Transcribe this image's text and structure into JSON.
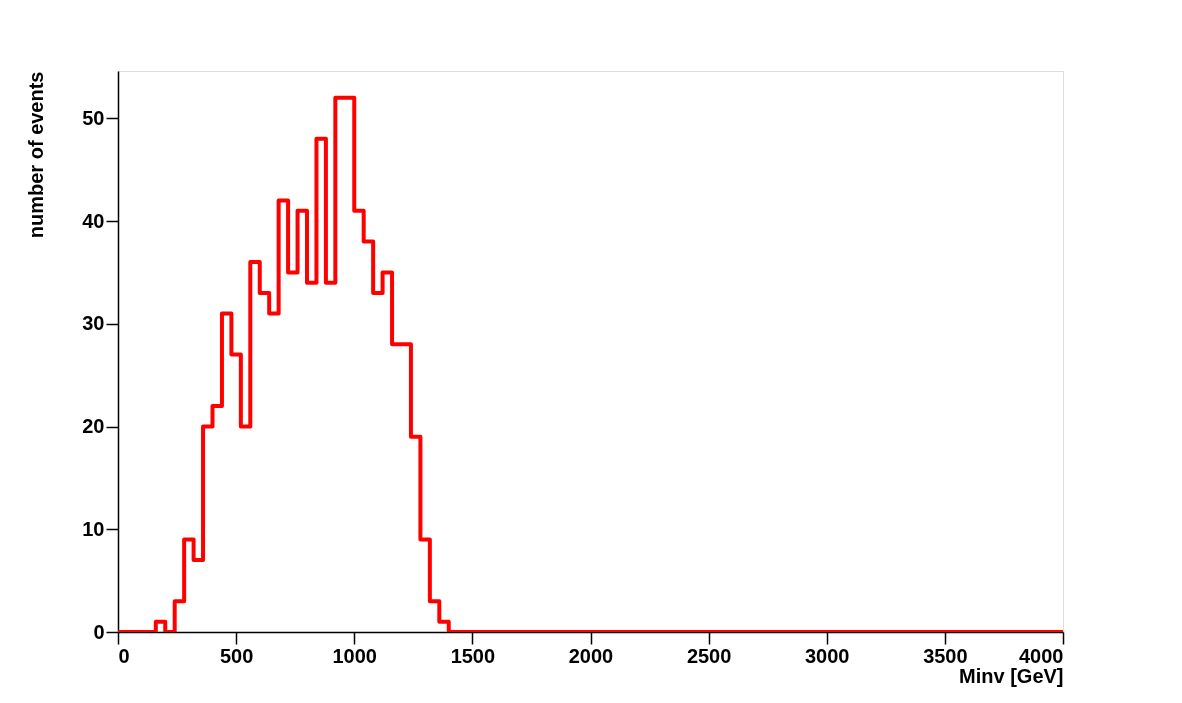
{
  "chart_data": {
    "type": "histogram",
    "xlabel": "Minv [GeV]",
    "ylabel": "number of events",
    "bins": [
      0,
      40,
      80,
      120,
      160,
      200,
      240,
      280,
      320,
      360,
      400,
      440,
      480,
      520,
      560,
      600,
      640,
      680,
      720,
      760,
      800,
      840,
      880,
      920,
      960,
      1000,
      1040,
      1080,
      1120,
      1160,
      1200,
      1240,
      1280,
      1320,
      1360,
      1400,
      1440,
      1480,
      1520,
      1560,
      1600,
      1640,
      1680,
      1720,
      1760,
      1800,
      1840,
      1880,
      1920,
      1960,
      2000,
      2040,
      2080,
      2120,
      2160,
      2200,
      2240,
      2280,
      2320,
      2360,
      2400,
      2440,
      2480,
      2520,
      2560,
      2600,
      2640,
      2680,
      2720,
      2760,
      2800,
      2840,
      2880,
      2920,
      2960,
      3000,
      3040,
      3080,
      3120,
      3160,
      3200,
      3240,
      3280,
      3320,
      3360,
      3400,
      3440,
      3480,
      3520,
      3560,
      3600,
      3640,
      3680,
      3720,
      3760,
      3800,
      3840,
      3880,
      3920,
      3960,
      4000
    ],
    "values": [
      0,
      0,
      0,
      0,
      1,
      0,
      3,
      9,
      7,
      20,
      22,
      31,
      27,
      20,
      36,
      33,
      31,
      42,
      35,
      41,
      34,
      48,
      34,
      52,
      52,
      41,
      38,
      33,
      35,
      28,
      28,
      19,
      9,
      3,
      1,
      0,
      0,
      0,
      0,
      0,
      0,
      0,
      0,
      0,
      0,
      0,
      0,
      0,
      0,
      0,
      0,
      0,
      0,
      0,
      0,
      0,
      0,
      0,
      0,
      0,
      0,
      0,
      0,
      0,
      0,
      0,
      0,
      0,
      0,
      0,
      0,
      0,
      0,
      0,
      0,
      0,
      0,
      0,
      0,
      0,
      0,
      0,
      0,
      0,
      0,
      0,
      0,
      0,
      0,
      0,
      0,
      0,
      0,
      0,
      0,
      0,
      0,
      0,
      0,
      0
    ],
    "color": "#ff0000",
    "xlim": [
      0,
      4000
    ],
    "xticks": [
      0,
      500,
      1000,
      1500,
      2000,
      2500,
      3000,
      3500,
      4000
    ],
    "ylim": [
      0,
      54.6
    ],
    "yticks": [
      0,
      10,
      20,
      30,
      40,
      50
    ],
    "grid": false
  }
}
